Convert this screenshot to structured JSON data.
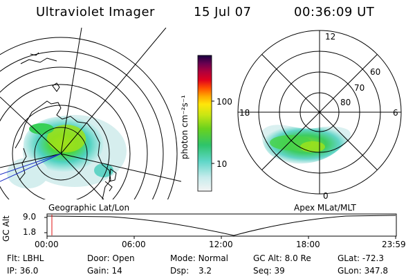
{
  "header": {
    "instrument": "Ultraviolet Imager",
    "date": "15 Jul 07",
    "time": "00:36:09 UT"
  },
  "colorbar": {
    "unit_label": "photon cm⁻²s⁻¹",
    "ticks": [
      "100",
      "10"
    ]
  },
  "mlt_dial": {
    "labels": {
      "top": "12",
      "left": "18",
      "right": "6",
      "bottom": "0"
    },
    "lat_labels": [
      "60",
      "70",
      "80"
    ]
  },
  "panel_titles": {
    "geographic": "Geographic Lat/Lon",
    "apex": "Apex MLat/MLT"
  },
  "altitude_plot": {
    "ylabel": "GC Alt",
    "yticks": [
      "9.0",
      "1.8"
    ],
    "xticks": [
      "00:00",
      "06:00",
      "12:00",
      "18:00",
      "23:59"
    ]
  },
  "info": {
    "flt_label": "Flt:",
    "flt_value": "LBHL",
    "ip_label": "IP:",
    "ip_value": "36.0",
    "door_label": "Door:",
    "door_value": "Open",
    "gain_label": "Gain:",
    "gain_value": "14",
    "mode_label": "Mode:",
    "mode_value": "Normal",
    "dsp_label": "Dsp:",
    "dsp_value": "3.2",
    "gcalt_label": "GC Alt:",
    "gcalt_value": "8.0 Re",
    "seq_label": "Seq:",
    "seq_value": "39",
    "glat_label": "GLat:",
    "glat_value": "-72.3",
    "glon_label": "GLon:",
    "glon_value": "347.8"
  }
}
